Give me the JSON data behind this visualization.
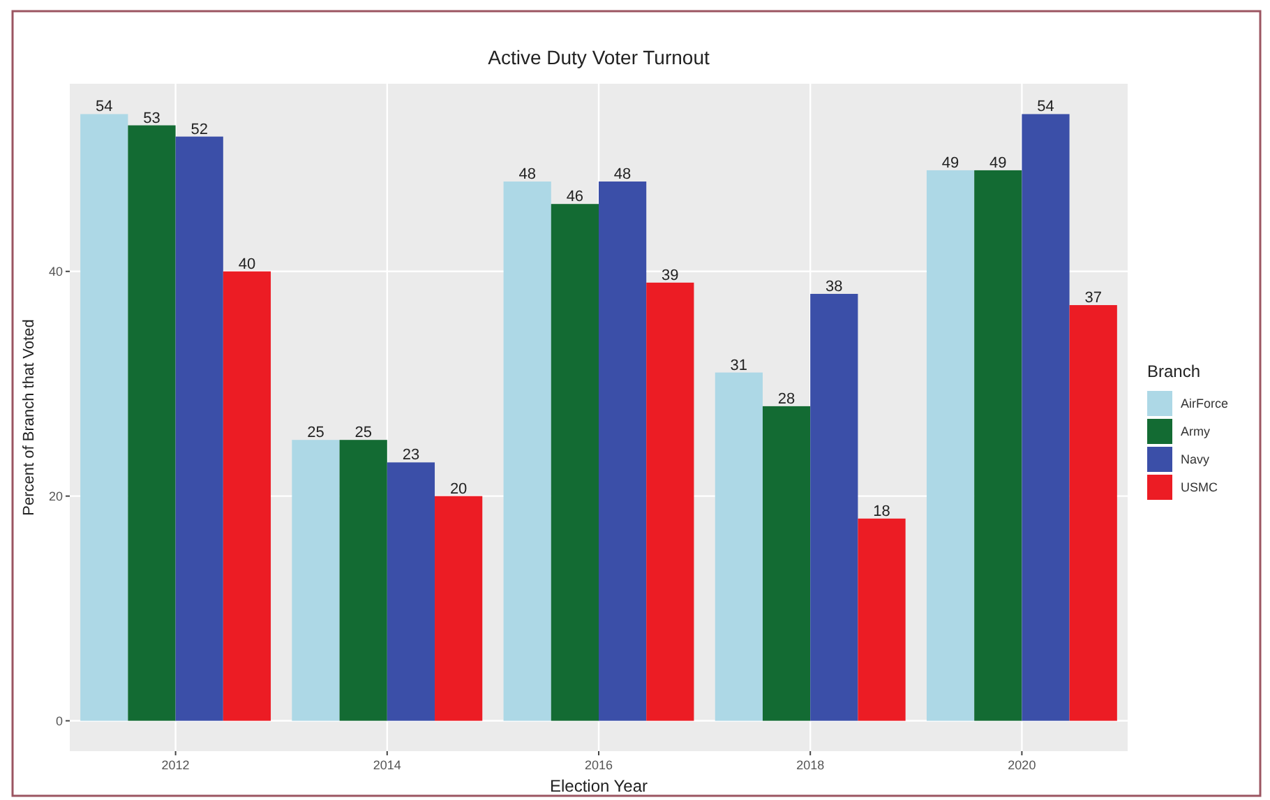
{
  "chart_data": {
    "type": "bar",
    "title": "Active Duty Voter Turnout",
    "xlabel": "Election Year",
    "ylabel": "Percent of Branch that Voted",
    "legend_title": "Branch",
    "categories": [
      "2012",
      "2014",
      "2016",
      "2018",
      "2020"
    ],
    "series": [
      {
        "name": "AirForce",
        "color": "#add8e6",
        "values": [
          54,
          25,
          48,
          31,
          49
        ]
      },
      {
        "name": "Army",
        "color": "#136b33",
        "values": [
          53,
          25,
          46,
          28,
          49
        ]
      },
      {
        "name": "Navy",
        "color": "#3b4fa8",
        "values": [
          52,
          23,
          48,
          38,
          54
        ]
      },
      {
        "name": "USMC",
        "color": "#ec1c24",
        "values": [
          40,
          20,
          39,
          18,
          37
        ]
      }
    ],
    "ylim": [
      -2.7,
      56.7
    ],
    "yticks": [
      0,
      20,
      40
    ],
    "grid": true,
    "legend": "right",
    "data_labels": true
  }
}
